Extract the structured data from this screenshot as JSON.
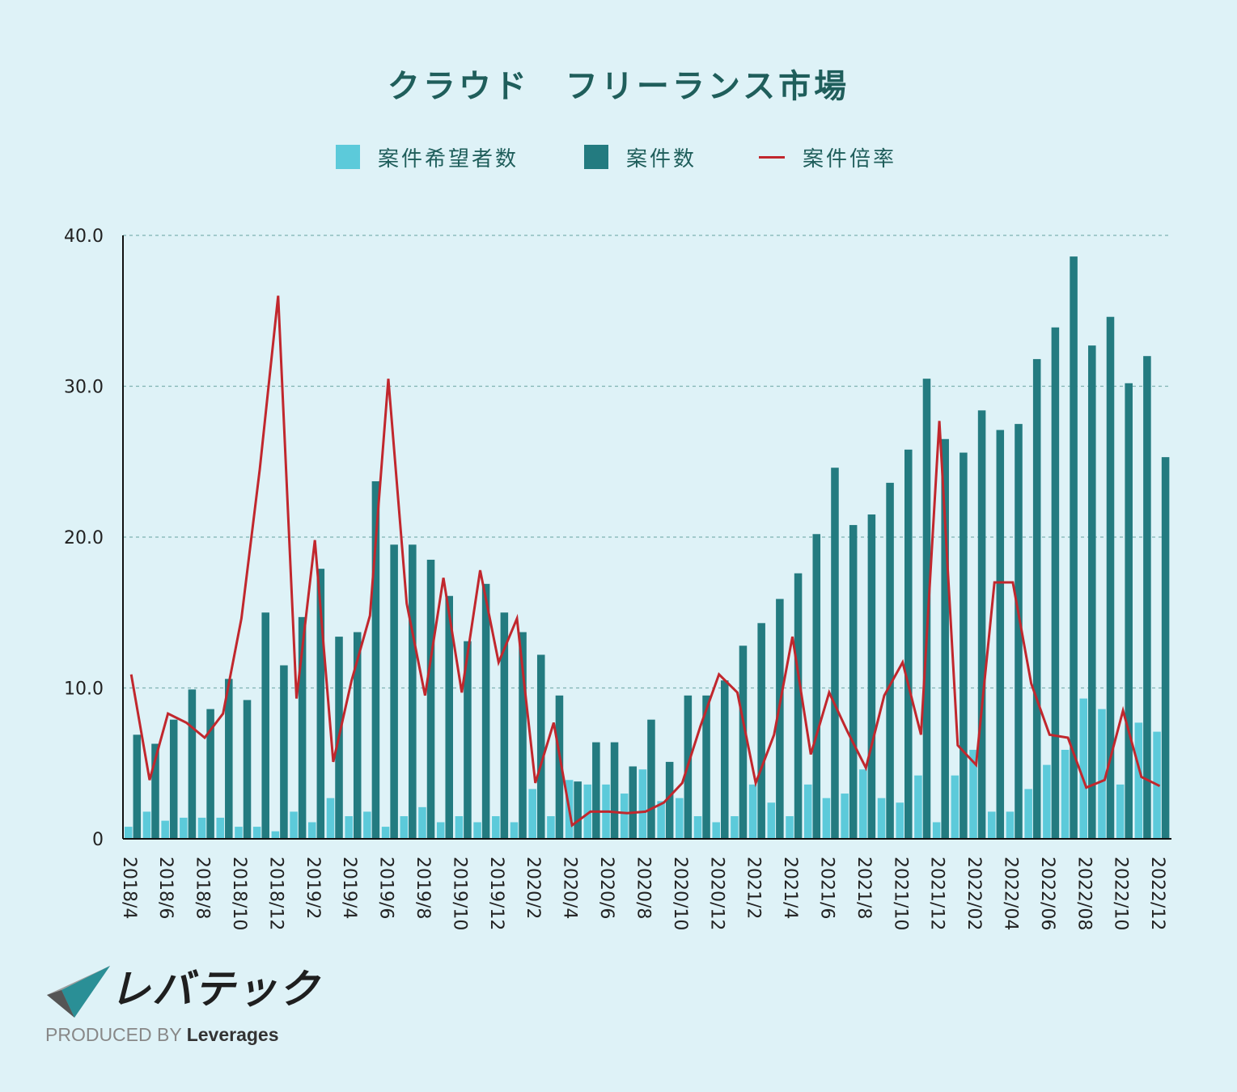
{
  "chart_data": {
    "type": "bar",
    "title": "クラウド　フリーランス市場",
    "legend": [
      {
        "name": "案件希望者数",
        "kind": "bar",
        "color": "#5ccada"
      },
      {
        "name": "案件数",
        "kind": "bar",
        "color": "#237b80"
      },
      {
        "name": "案件倍率",
        "kind": "line",
        "color": "#c1272d"
      }
    ],
    "ylim": [
      0,
      40
    ],
    "yticks": [
      "0",
      "10.0",
      "20.0",
      "30.0",
      "40.0"
    ],
    "categories": [
      "2018/4",
      "2018/5",
      "2018/6",
      "2018/7",
      "2018/8",
      "2018/9",
      "2018/10",
      "2018/11",
      "2018/12",
      "2019/1",
      "2019/2",
      "2019/3",
      "2019/4",
      "2019/5",
      "2019/6",
      "2019/7",
      "2019/8",
      "2019/9",
      "2019/10",
      "2019/11",
      "2019/12",
      "2020/1",
      "2020/2",
      "2020/3",
      "2020/4",
      "2020/5",
      "2020/6",
      "2020/7",
      "2020/8",
      "2020/9",
      "2020/10",
      "2020/11",
      "2020/12",
      "2021/1",
      "2021/2",
      "2021/3",
      "2021/4",
      "2021/5",
      "2021/6",
      "2021/7",
      "2021/8",
      "2021/9",
      "2021/10",
      "2021/11",
      "2021/12",
      "2022/01",
      "2022/02",
      "2022/03",
      "2022/04",
      "2022/05",
      "2022/06",
      "2022/07",
      "2022/08",
      "2022/09",
      "2022/10",
      "2022/11",
      "2022/12"
    ],
    "xticks": [
      "2018/4",
      "2018/6",
      "2018/8",
      "2018/10",
      "2018/12",
      "2019/2",
      "2019/4",
      "2019/6",
      "2019/8",
      "2019/10",
      "2019/12",
      "2020/2",
      "2020/4",
      "2020/6",
      "2020/8",
      "2020/10",
      "2020/12",
      "2021/2",
      "2021/4",
      "2021/6",
      "2021/8",
      "2021/10",
      "2021/12",
      "2022/02",
      "2022/04",
      "2022/06",
      "2022/08",
      "2022/10",
      "2022/12"
    ],
    "series": [
      {
        "name": "案件希望者数",
        "values": [
          0.8,
          1.8,
          1.2,
          1.4,
          1.4,
          1.4,
          0.8,
          0.8,
          0.5,
          1.8,
          1.1,
          2.7,
          1.5,
          1.8,
          0.8,
          1.5,
          2.1,
          1.1,
          1.5,
          1.1,
          1.5,
          1.1,
          3.3,
          1.5,
          3.9,
          3.6,
          3.6,
          3.0,
          4.6,
          2.5,
          2.7,
          1.5,
          1.1,
          1.5,
          3.6,
          2.4,
          1.5,
          3.6,
          2.7,
          3.0,
          4.6,
          2.7,
          2.4,
          4.2,
          1.1,
          4.2,
          5.9,
          1.8,
          1.8,
          3.3,
          4.9,
          5.9,
          9.3,
          8.6,
          3.6,
          7.7,
          7.1
        ]
      },
      {
        "name": "案件数",
        "values": [
          6.9,
          6.3,
          7.9,
          9.9,
          8.6,
          10.6,
          9.2,
          15.0,
          11.5,
          14.7,
          17.9,
          13.4,
          13.7,
          23.7,
          19.5,
          19.5,
          18.5,
          16.1,
          13.1,
          16.9,
          15.0,
          13.7,
          12.2,
          9.5,
          3.8,
          6.4,
          6.4,
          4.8,
          7.9,
          5.1,
          9.5,
          9.5,
          10.5,
          12.8,
          14.3,
          15.9,
          17.6,
          20.2,
          24.6,
          20.8,
          21.5,
          23.6,
          25.8,
          30.5,
          26.5,
          25.6,
          28.4,
          27.1,
          27.5,
          31.8,
          33.9,
          38.6,
          32.7,
          34.6,
          30.2,
          32.0,
          25.3
        ]
      },
      {
        "name": "案件倍率",
        "values": [
          10.9,
          3.9,
          8.3,
          7.7,
          6.7,
          8.3,
          14.6,
          24.5,
          36.0,
          9.3,
          19.8,
          5.1,
          10.5,
          14.8,
          30.5,
          15.6,
          9.5,
          17.3,
          9.7,
          17.8,
          11.7,
          14.6,
          3.7,
          7.7,
          0.9,
          1.8,
          1.8,
          1.7,
          1.8,
          2.4,
          3.7,
          7.5,
          10.9,
          9.7,
          3.7,
          6.9,
          13.4,
          5.6,
          9.7,
          7.1,
          4.7,
          9.5,
          11.7,
          6.9,
          27.7,
          6.2,
          4.9,
          17.0,
          17.0,
          10.3,
          6.9,
          6.7,
          3.4,
          3.9,
          8.5,
          4.1,
          3.5
        ]
      }
    ]
  },
  "logo": {
    "brand": "レバテック",
    "produced_by": "PRODUCED BY",
    "company": "Leverages"
  }
}
